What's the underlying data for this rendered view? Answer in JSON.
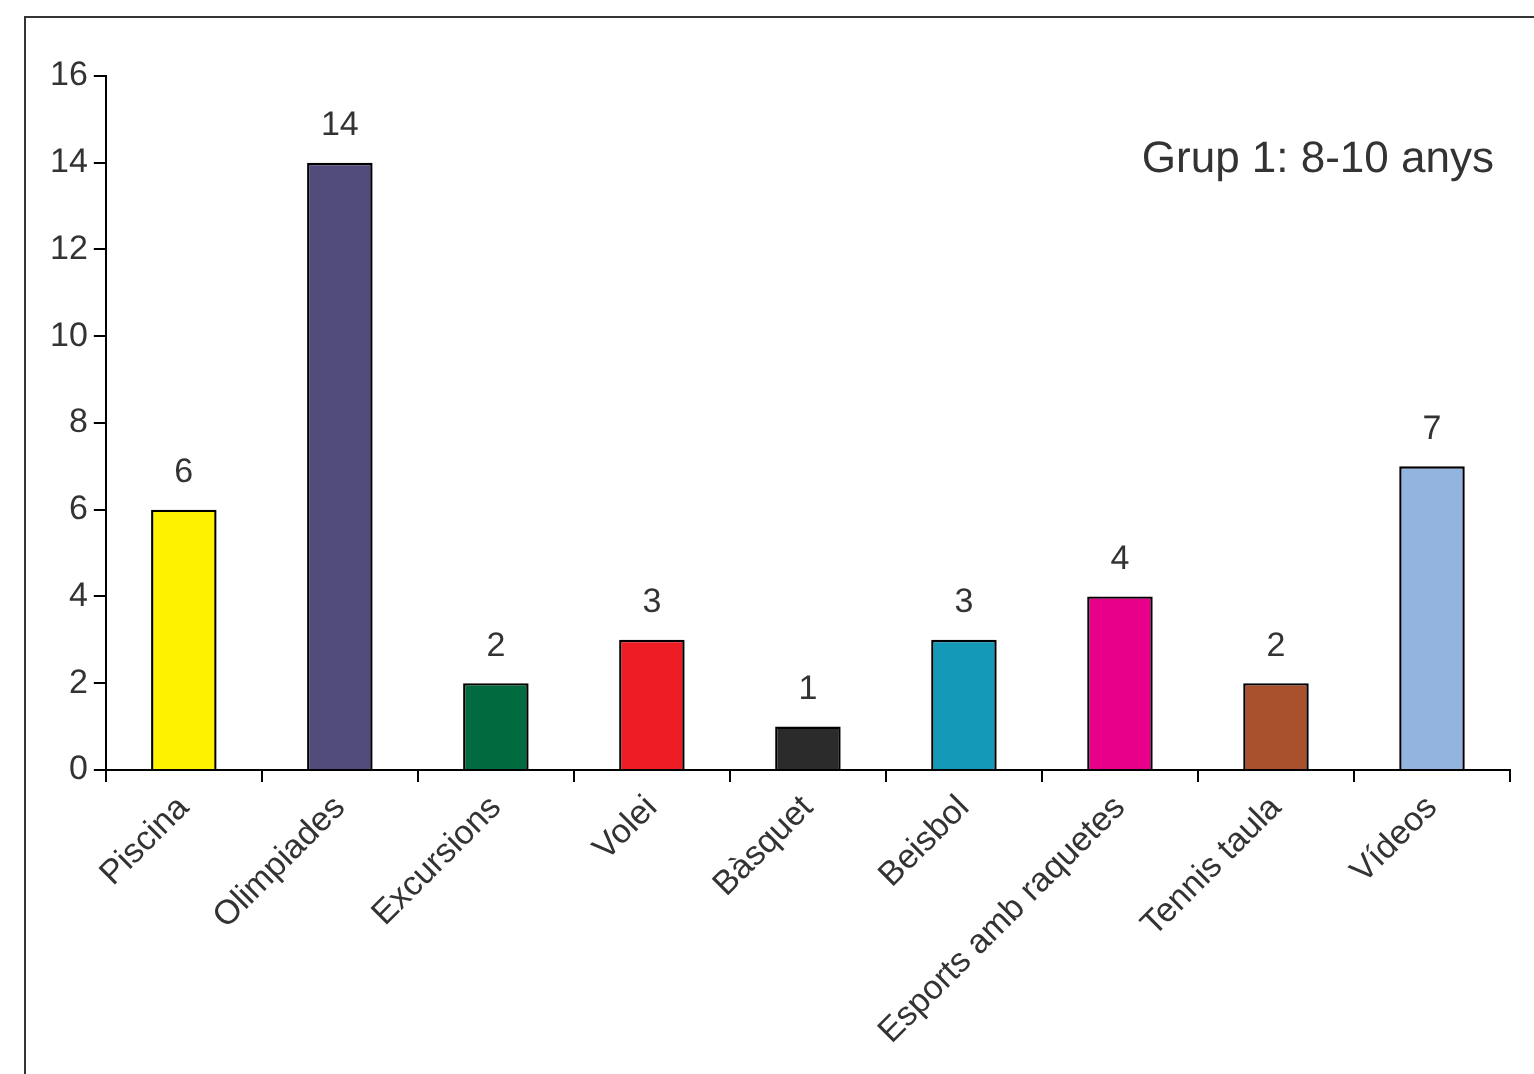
{
  "chart_data": {
    "type": "bar",
    "title": "Grup 1: 8-10 anys",
    "categories": [
      "Piscina",
      "Olimpiades",
      "Excursions",
      "Volei",
      "Bàsquet",
      "Beisbol",
      "Esports amb raquetes",
      "Tennis taula",
      "Vídeos"
    ],
    "values": [
      6,
      14,
      2,
      3,
      1,
      3,
      4,
      2,
      7
    ],
    "colors": [
      "#fff200",
      "#524c7c",
      "#006b3f",
      "#ee1d23",
      "#2b2b2b",
      "#1499b8",
      "#e8008a",
      "#a9502d",
      "#94b4e0"
    ],
    "ylim": [
      0,
      16
    ],
    "yticks": [
      0,
      2,
      4,
      6,
      8,
      10,
      12,
      14,
      16
    ],
    "grid": false,
    "legend": false,
    "data_labels": true
  }
}
